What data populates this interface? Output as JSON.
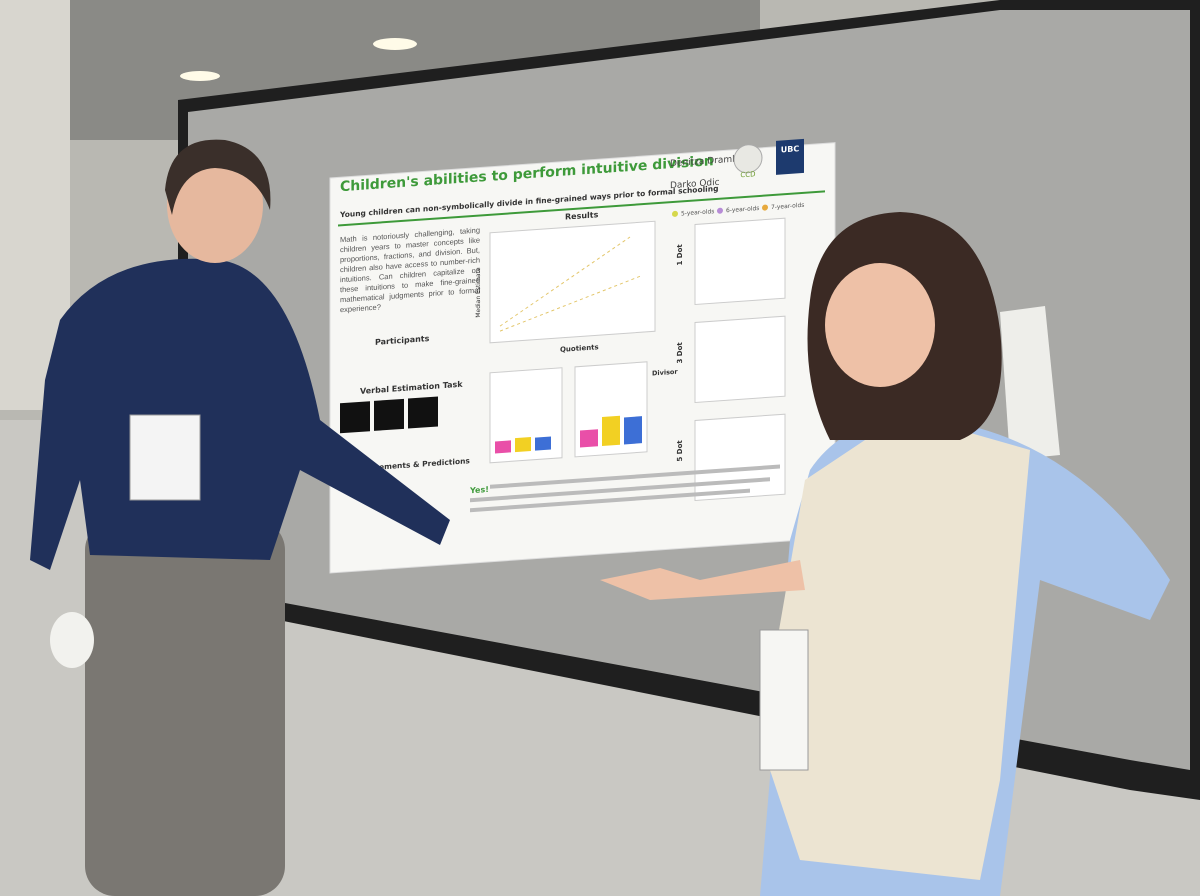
{
  "poster": {
    "title": "Children's abilities to perform intuitive division",
    "subtitle": "Young children can non-symbolically divide in fine-grained ways prior to formal schooling",
    "authors": [
      "Denitza Dramkin",
      "Darko Odic"
    ],
    "logos": [
      "CCD",
      "UBC"
    ],
    "intro": "Math is notoriously challenging, taking children years to master concepts like proportions, fractions, and division. But, children also have access to number-rich intuitions. Can children capitalize on these intuitions to make fine-grained mathematical judgments prior to formal experience?",
    "sections": {
      "participants": "Participants",
      "task": "Verbal Estimation Task",
      "measurements": "Measurements & Predictions",
      "results": "Results"
    },
    "legend": [
      "5-year-olds",
      "6-year-olds",
      "7-year-olds"
    ],
    "panels": [
      "1 Dot",
      "3 Dot",
      "5 Dot"
    ],
    "x_label": "Quotients",
    "y_label": "Median Estimate",
    "divisor": "Divisor",
    "conclusion": "Yes!"
  }
}
